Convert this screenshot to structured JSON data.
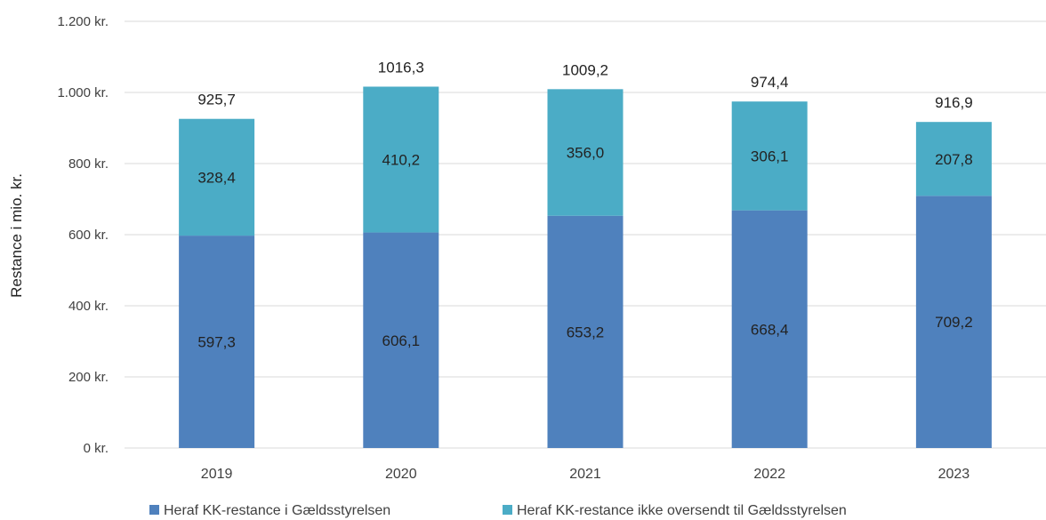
{
  "chart_data": {
    "type": "bar",
    "stacked": true,
    "categories": [
      "2019",
      "2020",
      "2021",
      "2022",
      "2023"
    ],
    "series": [
      {
        "name": "Heraf KK-restance i Gældsstyrelsen",
        "values": [
          597.3,
          606.1,
          653.2,
          668.4,
          709.2
        ],
        "labels": [
          "597,3",
          "606,1",
          "653,2",
          "668,4",
          "709,2"
        ],
        "color": "#4F81BD"
      },
      {
        "name": "Heraf KK-restance ikke oversendt til Gældsstyrelsen",
        "values": [
          328.4,
          410.2,
          356.0,
          306.1,
          207.8
        ],
        "labels": [
          "328,4",
          "410,2",
          "356,0",
          "306,1",
          "207,8"
        ],
        "color": "#4BACC6"
      }
    ],
    "totals": [
      925.7,
      1016.3,
      1009.2,
      974.4,
      916.9
    ],
    "total_labels": [
      "925,7",
      "1016,3",
      "1009,2",
      "974,4",
      "916,9"
    ],
    "ylabel": "Restance i mio. kr.",
    "yticks": [
      0,
      200,
      400,
      600,
      800,
      1000,
      1200
    ],
    "ytick_labels": [
      "0 kr.",
      "200 kr.",
      "400 kr.",
      "600 kr.",
      "800 kr.",
      "1.000 kr.",
      "1.200 kr."
    ],
    "ylim": [
      0,
      1200
    ],
    "grid": true,
    "legend_position": "bottom",
    "gridline_color": "#D9D9D9"
  }
}
